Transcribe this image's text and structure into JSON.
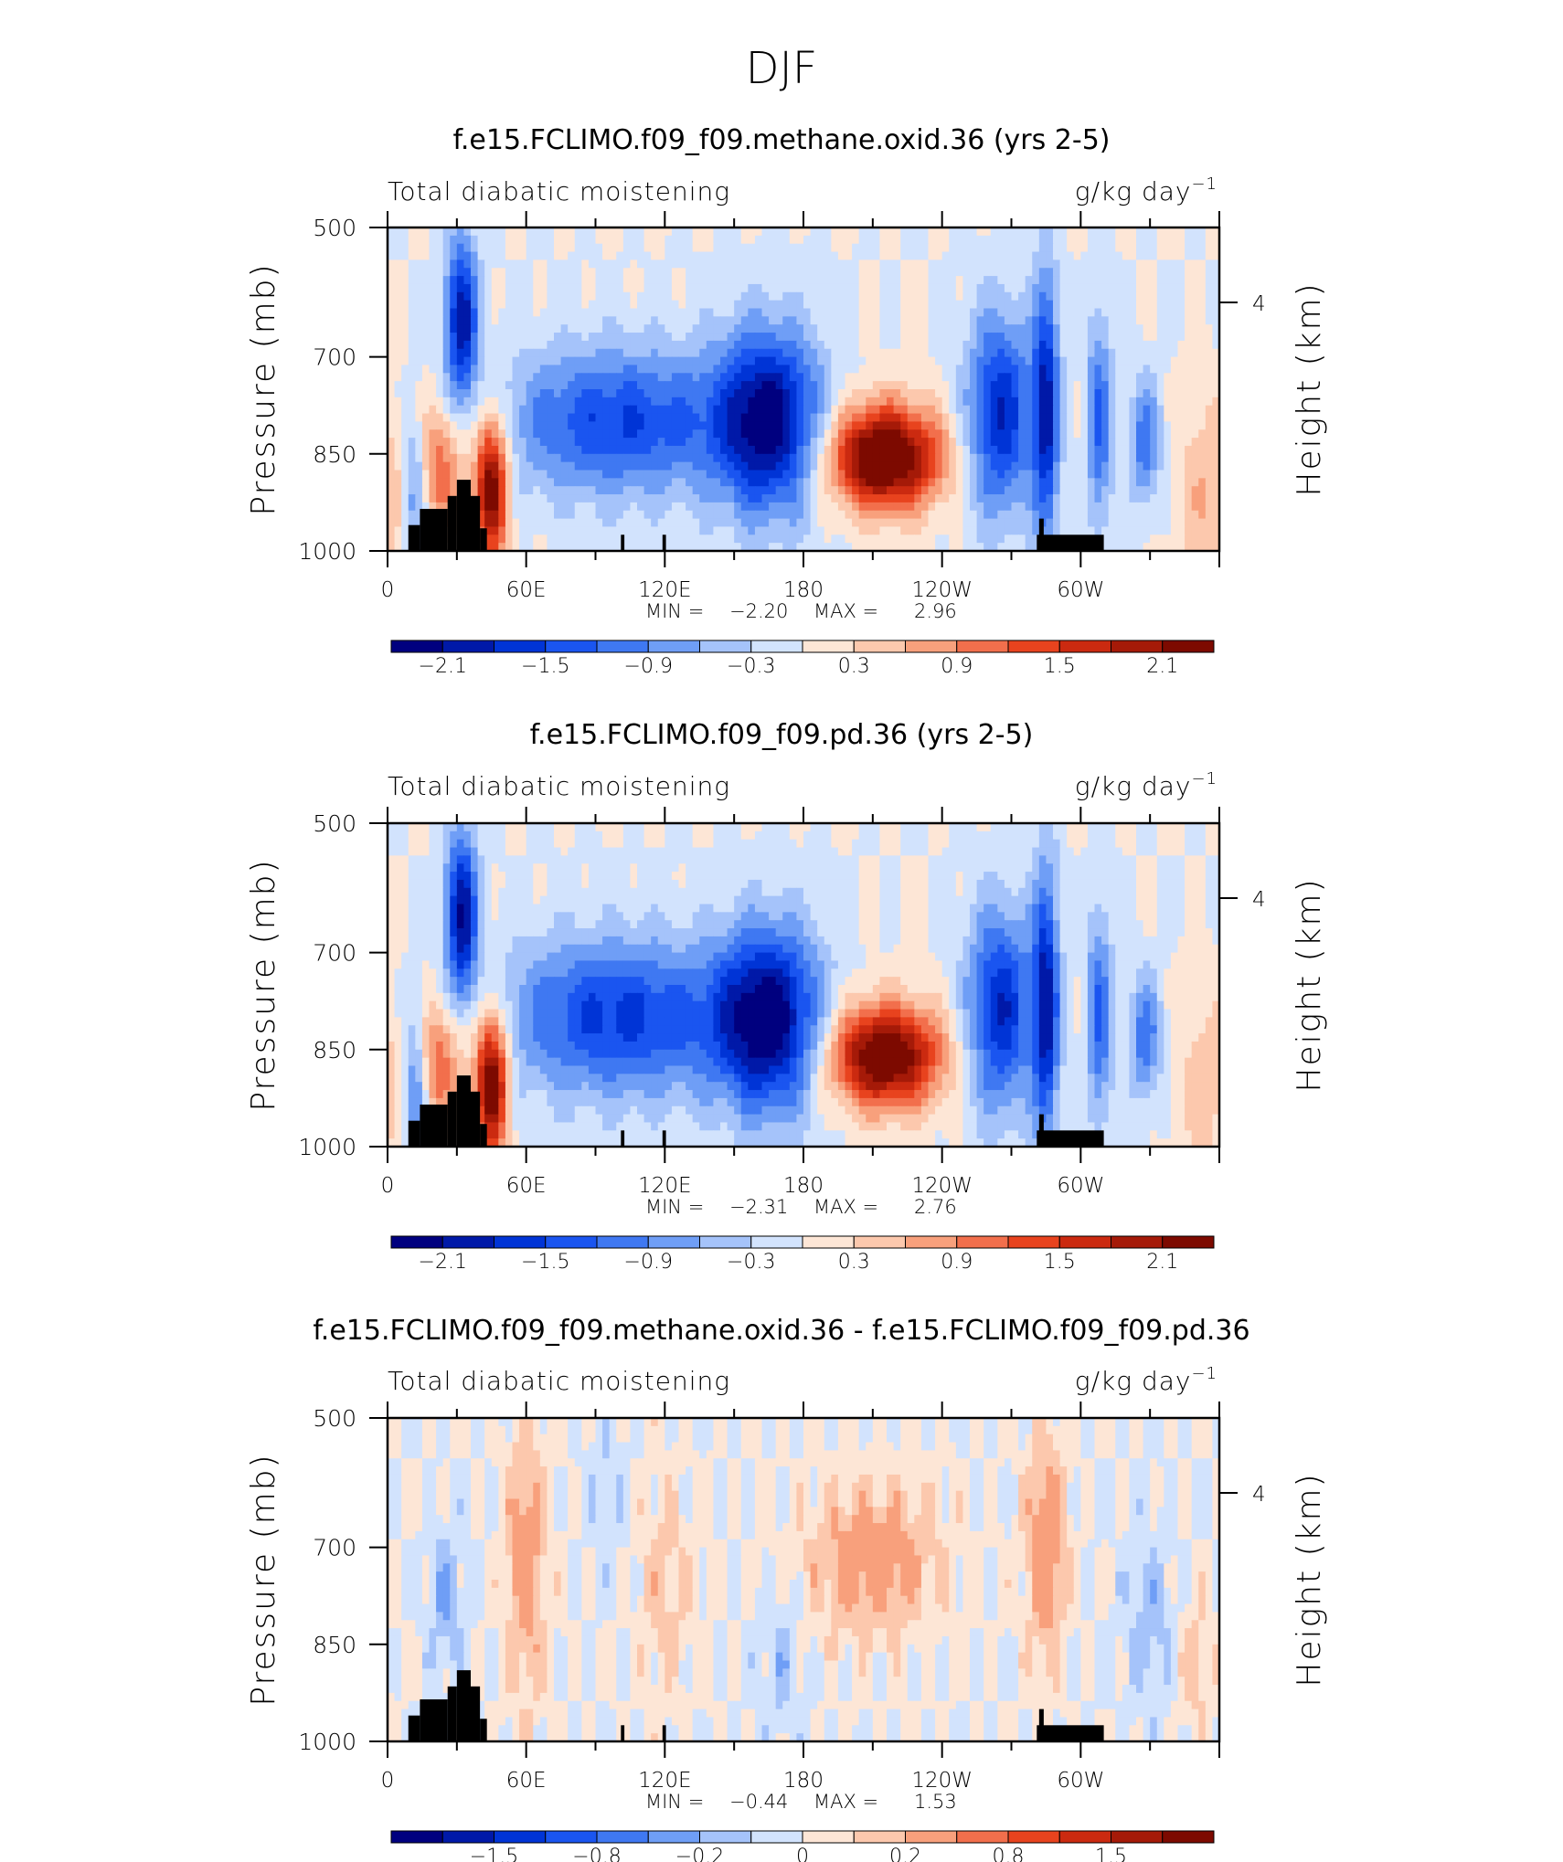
{
  "figure_title": "DJF",
  "chart_data": [
    {
      "type": "heatmap",
      "title": "f.e15.FCLIMO.f09_f09.methane.oxid.36 (yrs 2-5)",
      "left_label": "Total diabatic moistening",
      "units": "g/kg day",
      "units_exp": "−1",
      "ylabel": "Pressure (mb)",
      "ylabel_right": "Height (km)",
      "yticks": [
        "500",
        "700",
        "850",
        "1000"
      ],
      "ytick_values": [
        500,
        700,
        850,
        1000
      ],
      "right_tick": "4",
      "xticks": [
        "0",
        "60E",
        "120E",
        "180",
        "120W",
        "60W"
      ],
      "xtick_values": [
        0,
        60,
        120,
        180,
        240,
        300
      ],
      "xlim": [
        0,
        360
      ],
      "ylim": [
        1000,
        500
      ],
      "min_label": "MIN =",
      "min_value": "−2.20",
      "max_label": "MAX =",
      "max_value": "2.96",
      "colorbar_labels": [
        "−2.1",
        "−1.5",
        "−0.9",
        "−0.3",
        "0.3",
        "0.9",
        "1.5",
        "2.1"
      ],
      "colorbar_levels": [
        -2.4,
        -2.1,
        -1.8,
        -1.5,
        -1.2,
        -0.9,
        -0.6,
        -0.3,
        0,
        0.3,
        0.6,
        0.9,
        1.2,
        1.5,
        1.8,
        2.1,
        2.4
      ],
      "features": [
        {
          "lon": 32,
          "p": 640,
          "value": -2.0,
          "wlon": 5,
          "wp": 90
        },
        {
          "lon": 45,
          "p": 900,
          "value": 2.5,
          "wlon": 5,
          "wp": 80
        },
        {
          "lon": 22,
          "p": 870,
          "value": 1.2,
          "wlon": 8,
          "wp": 70
        },
        {
          "lon": 12,
          "p": 900,
          "value": -1.2,
          "wlon": 4,
          "wp": 80
        },
        {
          "lon": 100,
          "p": 800,
          "value": -1.5,
          "wlon": 35,
          "wp": 80
        },
        {
          "lon": 165,
          "p": 800,
          "value": -2.2,
          "wlon": 16,
          "wp": 100
        },
        {
          "lon": 215,
          "p": 855,
          "value": 2.9,
          "wlon": 17,
          "wp": 55
        },
        {
          "lon": 265,
          "p": 790,
          "value": -1.8,
          "wlon": 10,
          "wp": 110
        },
        {
          "lon": 285,
          "p": 780,
          "value": -1.8,
          "wlon": 4,
          "wp": 150
        },
        {
          "lon": 308,
          "p": 800,
          "value": -1.2,
          "wlon": 4,
          "wp": 120
        },
        {
          "lon": 328,
          "p": 830,
          "value": -1.1,
          "wlon": 5,
          "wp": 70
        },
        {
          "lon": 355,
          "p": 900,
          "value": 0.6,
          "wlon": 10,
          "wp": 100
        }
      ]
    },
    {
      "type": "heatmap",
      "title": "f.e15.FCLIMO.f09_f09.pd.36 (yrs 2-5)",
      "left_label": "Total diabatic moistening",
      "units": "g/kg day",
      "units_exp": "−1",
      "ylabel": "Pressure (mb)",
      "ylabel_right": "Height (km)",
      "yticks": [
        "500",
        "700",
        "850",
        "1000"
      ],
      "ytick_values": [
        500,
        700,
        850,
        1000
      ],
      "right_tick": "4",
      "xticks": [
        "0",
        "60E",
        "120E",
        "180",
        "120W",
        "60W"
      ],
      "xtick_values": [
        0,
        60,
        120,
        180,
        240,
        300
      ],
      "xlim": [
        0,
        360
      ],
      "ylim": [
        1000,
        500
      ],
      "min_label": "MIN =",
      "min_value": "−2.31",
      "max_label": "MAX =",
      "max_value": "2.76",
      "colorbar_labels": [
        "−2.1",
        "−1.5",
        "−0.9",
        "−0.3",
        "0.3",
        "0.9",
        "1.5",
        "2.1"
      ],
      "colorbar_levels": [
        -2.4,
        -2.1,
        -1.8,
        -1.5,
        -1.2,
        -0.9,
        -0.6,
        -0.3,
        0,
        0.3,
        0.6,
        0.9,
        1.2,
        1.5,
        1.8,
        2.1,
        2.4
      ],
      "features": [
        {
          "lon": 32,
          "p": 640,
          "value": -2.1,
          "wlon": 5,
          "wp": 90
        },
        {
          "lon": 45,
          "p": 900,
          "value": 2.6,
          "wlon": 5,
          "wp": 80
        },
        {
          "lon": 22,
          "p": 870,
          "value": 1.2,
          "wlon": 8,
          "wp": 70
        },
        {
          "lon": 12,
          "p": 900,
          "value": -1.3,
          "wlon": 4,
          "wp": 80
        },
        {
          "lon": 100,
          "p": 800,
          "value": -1.6,
          "wlon": 35,
          "wp": 85
        },
        {
          "lon": 165,
          "p": 805,
          "value": -2.3,
          "wlon": 16,
          "wp": 100
        },
        {
          "lon": 215,
          "p": 860,
          "value": 2.7,
          "wlon": 17,
          "wp": 55
        },
        {
          "lon": 265,
          "p": 790,
          "value": -1.8,
          "wlon": 10,
          "wp": 110
        },
        {
          "lon": 285,
          "p": 780,
          "value": -1.9,
          "wlon": 4,
          "wp": 150
        },
        {
          "lon": 308,
          "p": 800,
          "value": -1.2,
          "wlon": 4,
          "wp": 120
        },
        {
          "lon": 328,
          "p": 830,
          "value": -1.1,
          "wlon": 5,
          "wp": 70
        },
        {
          "lon": 355,
          "p": 900,
          "value": 0.5,
          "wlon": 10,
          "wp": 100
        }
      ]
    },
    {
      "type": "heatmap",
      "title": "f.e15.FCLIMO.f09_f09.methane.oxid.36 - f.e15.FCLIMO.f09_f09.pd.36",
      "left_label": "Total diabatic moistening",
      "units": "g/kg day",
      "units_exp": "−1",
      "ylabel": "Pressure (mb)",
      "ylabel_right": "Height (km)",
      "yticks": [
        "500",
        "700",
        "850",
        "1000"
      ],
      "ytick_values": [
        500,
        700,
        850,
        1000
      ],
      "right_tick": "4",
      "xticks": [
        "0",
        "60E",
        "120E",
        "180",
        "120W",
        "60W"
      ],
      "xtick_values": [
        0,
        60,
        120,
        180,
        240,
        300
      ],
      "xlim": [
        0,
        360
      ],
      "ylim": [
        1000,
        500
      ],
      "min_label": "MIN =",
      "min_value": "−0.44",
      "max_label": "MAX =",
      "max_value": "1.53",
      "colorbar_labels": [
        "−1.5",
        "−0.8",
        "−0.2",
        "0",
        "0.2",
        "0.8",
        "1.5"
      ],
      "colorbar_levels": [
        -2.0,
        -1.5,
        -1.0,
        -0.8,
        -0.6,
        -0.4,
        -0.2,
        -0.1,
        0,
        0.1,
        0.2,
        0.4,
        0.6,
        0.8,
        1.0,
        1.5,
        2.0
      ],
      "features": [
        {
          "lon": 60,
          "p": 720,
          "value": 0.3,
          "wlon": 6,
          "wp": 150
        },
        {
          "lon": 210,
          "p": 720,
          "value": 0.3,
          "wlon": 20,
          "wp": 80
        },
        {
          "lon": 285,
          "p": 700,
          "value": 0.35,
          "wlon": 6,
          "wp": 120
        },
        {
          "lon": 25,
          "p": 780,
          "value": -0.2,
          "wlon": 5,
          "wp": 80
        },
        {
          "lon": 120,
          "p": 760,
          "value": 0.15,
          "wlon": 8,
          "wp": 120
        },
        {
          "lon": 170,
          "p": 880,
          "value": -0.15,
          "wlon": 6,
          "wp": 80
        },
        {
          "lon": 330,
          "p": 820,
          "value": -0.15,
          "wlon": 8,
          "wp": 100
        },
        {
          "lon": 95,
          "p": 600,
          "value": -0.1,
          "wlon": 6,
          "wp": 80
        },
        {
          "lon": 350,
          "p": 880,
          "value": 0.15,
          "wlon": 6,
          "wp": 80
        }
      ]
    }
  ],
  "colors": {
    "palette": [
      "#00007f",
      "#0019a8",
      "#0034d6",
      "#1a55f0",
      "#3f78f2",
      "#6f9ef6",
      "#a5c3fa",
      "#d2e3fd",
      "#fde6d6",
      "#fcc8ad",
      "#f8a07c",
      "#f26f4c",
      "#e8431e",
      "#cb2a10",
      "#a51a08",
      "#7d0a00"
    ],
    "topography": "#000000"
  }
}
